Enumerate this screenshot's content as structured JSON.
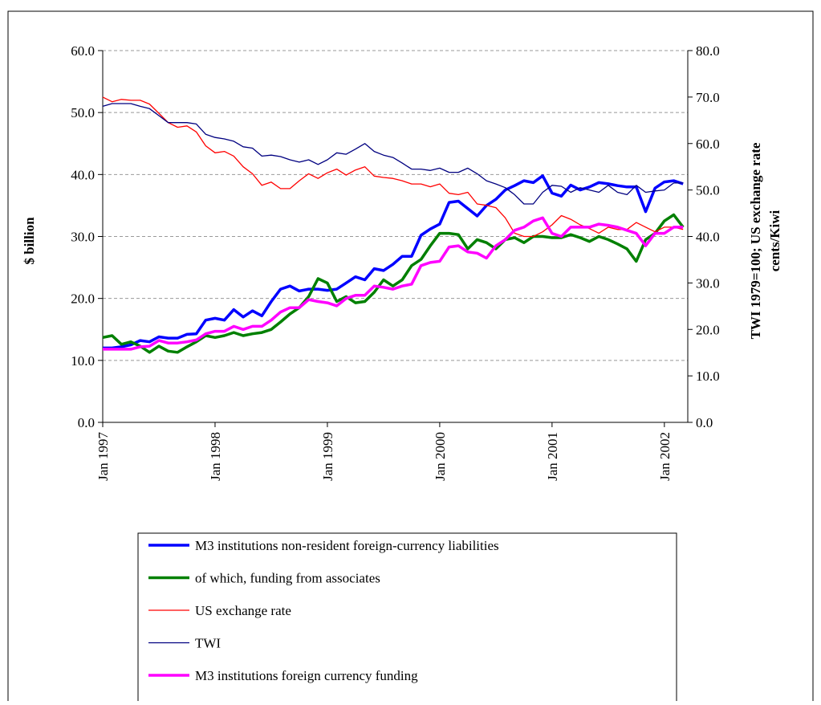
{
  "chart_data": {
    "type": "line",
    "y_label": "$ billion",
    "y2_label": [
      "TWI 1979=100; US exchange rate",
      "cents/Kiwi"
    ],
    "categories": [
      "Jan 1997",
      null,
      null,
      null,
      null,
      null,
      null,
      null,
      null,
      null,
      null,
      null,
      "Jan 1998",
      null,
      null,
      null,
      null,
      null,
      null,
      null,
      null,
      null,
      null,
      null,
      "Jan 1999",
      null,
      null,
      null,
      null,
      null,
      null,
      null,
      null,
      null,
      null,
      null,
      "Jan 2000",
      null,
      null,
      null,
      null,
      null,
      null,
      null,
      null,
      null,
      null,
      null,
      "Jan 2001",
      null,
      null,
      null,
      null,
      null,
      null,
      null,
      null,
      null,
      null,
      null,
      "Jan 2002",
      null,
      null
    ],
    "ylim": [
      0,
      60
    ],
    "yticks": [
      {
        "value": 0,
        "label": "0.0"
      },
      {
        "value": 10,
        "label": "10.0"
      },
      {
        "value": 20,
        "label": "20.0"
      },
      {
        "value": 30,
        "label": "30.0"
      },
      {
        "value": 40,
        "label": "40.0"
      },
      {
        "value": 50,
        "label": "50.0"
      },
      {
        "value": 60,
        "label": "60.0"
      }
    ],
    "y2lim": [
      0,
      80
    ],
    "y2ticks": [
      {
        "value": 0,
        "label": "0.0"
      },
      {
        "value": 10,
        "label": "10.0"
      },
      {
        "value": 20,
        "label": "20.0"
      },
      {
        "value": 30,
        "label": "30.0"
      },
      {
        "value": 40,
        "label": "40.0"
      },
      {
        "value": 50,
        "label": "50.0"
      },
      {
        "value": 60,
        "label": "60.0"
      },
      {
        "value": 70,
        "label": "70.0"
      },
      {
        "value": 80,
        "label": "80.0"
      }
    ],
    "grid": true,
    "series": [
      {
        "name": "M3 institutions non-resident foreign-currency liabilities",
        "color": "#0000ff",
        "axis": "y",
        "values": [
          12,
          12,
          12.2,
          12.5,
          13.2,
          13,
          13.8,
          13.6,
          13.6,
          14.2,
          14.3,
          16.5,
          16.8,
          16.5,
          18.2,
          17,
          18,
          17.2,
          19.5,
          21.5,
          22,
          21.2,
          21.5,
          21.5,
          21.3,
          21.5,
          22.5,
          23.5,
          23,
          24.8,
          24.5,
          25.5,
          26.8,
          26.8,
          30.2,
          31.2,
          32,
          35.5,
          35.7,
          34.5,
          33.3,
          35,
          36,
          37.5,
          38.2,
          39,
          38.7,
          39.8,
          37,
          36.5,
          38.3,
          37.5,
          38,
          38.7,
          38.5,
          38.2,
          38,
          38,
          34,
          37.8,
          38.8,
          39,
          38.5
        ]
      },
      {
        "name": "of which, funding from associates",
        "color": "#008000",
        "axis": "y",
        "values": [
          13.7,
          14,
          12.6,
          13,
          12.3,
          11.3,
          12.3,
          11.5,
          11.3,
          12.2,
          13,
          14,
          13.7,
          14,
          14.5,
          14,
          14.3,
          14.5,
          15,
          16.2,
          17.5,
          18.5,
          20.3,
          23.2,
          22.5,
          19.5,
          20.3,
          19.3,
          19.5,
          21,
          23,
          22,
          23,
          25.3,
          26.3,
          28.5,
          30.5,
          30.5,
          30.3,
          28,
          29.5,
          29,
          28,
          29.5,
          29.8,
          29,
          30,
          30,
          29.8,
          29.8,
          30.3,
          29.8,
          29.2,
          30,
          29.5,
          28.8,
          28,
          26,
          29.5,
          30.5,
          32.5,
          33.5,
          31.5
        ]
      },
      {
        "name": "US exchange rate",
        "color": "#ff0000",
        "axis": "y2",
        "values": [
          70,
          69,
          69.5,
          69.3,
          69.3,
          68.5,
          66.5,
          64.5,
          63.5,
          63.8,
          62.5,
          59.5,
          58,
          58.3,
          57.3,
          55,
          53.5,
          51,
          51.7,
          50.3,
          50.3,
          52,
          53.5,
          52.5,
          53.7,
          54.5,
          53.2,
          54.3,
          55,
          53,
          52.7,
          52.5,
          52,
          51.3,
          51.3,
          50.7,
          51.3,
          49.3,
          49,
          49.5,
          47,
          46.7,
          46.2,
          44,
          40.7,
          40,
          40,
          41,
          42.5,
          44.5,
          43.7,
          42.5,
          41.7,
          40.7,
          42,
          41.5,
          41.5,
          43,
          42,
          41,
          42,
          42,
          41.5
        ]
      },
      {
        "name": "TWI",
        "color": "#000080",
        "axis": "y2",
        "values": [
          68,
          68.6,
          68.6,
          68.6,
          68,
          67.5,
          66,
          64.5,
          64.5,
          64.5,
          64.2,
          62,
          61.3,
          61,
          60.5,
          59.3,
          59,
          57.3,
          57.5,
          57.2,
          56.5,
          56,
          56.5,
          55.5,
          56.5,
          58,
          57.7,
          58.8,
          60,
          58.3,
          57.5,
          57,
          55.8,
          54.5,
          54.5,
          54.2,
          54.7,
          53.8,
          53.8,
          54.7,
          53.5,
          52,
          51.3,
          50.5,
          49,
          47,
          47,
          49.5,
          51,
          50.8,
          49.5,
          50.5,
          50,
          49.5,
          51,
          49.5,
          49,
          51,
          49.5,
          49.8,
          50,
          51.5,
          51.5
        ]
      },
      {
        "name": "M3 institutions foreign currency funding",
        "color": "#ff00ff",
        "axis": "y",
        "values": [
          11.8,
          11.8,
          11.8,
          11.8,
          12.2,
          12.3,
          13.2,
          12.8,
          12.8,
          13,
          13.3,
          14.3,
          14.7,
          14.7,
          15.5,
          15,
          15.5,
          15.5,
          16.5,
          17.8,
          18.5,
          18.5,
          19.8,
          19.5,
          19.3,
          18.8,
          20,
          20.5,
          20.5,
          22,
          21.8,
          21.5,
          22,
          22.3,
          25.3,
          25.8,
          26,
          28.3,
          28.5,
          27.5,
          27.3,
          26.5,
          28.5,
          29.5,
          31,
          31.5,
          32.5,
          33,
          30.5,
          30,
          31.5,
          31.5,
          31.5,
          32,
          31.8,
          31.5,
          31,
          30.5,
          28.5,
          30.5,
          30.5,
          31.5,
          31.5
        ]
      }
    ]
  }
}
